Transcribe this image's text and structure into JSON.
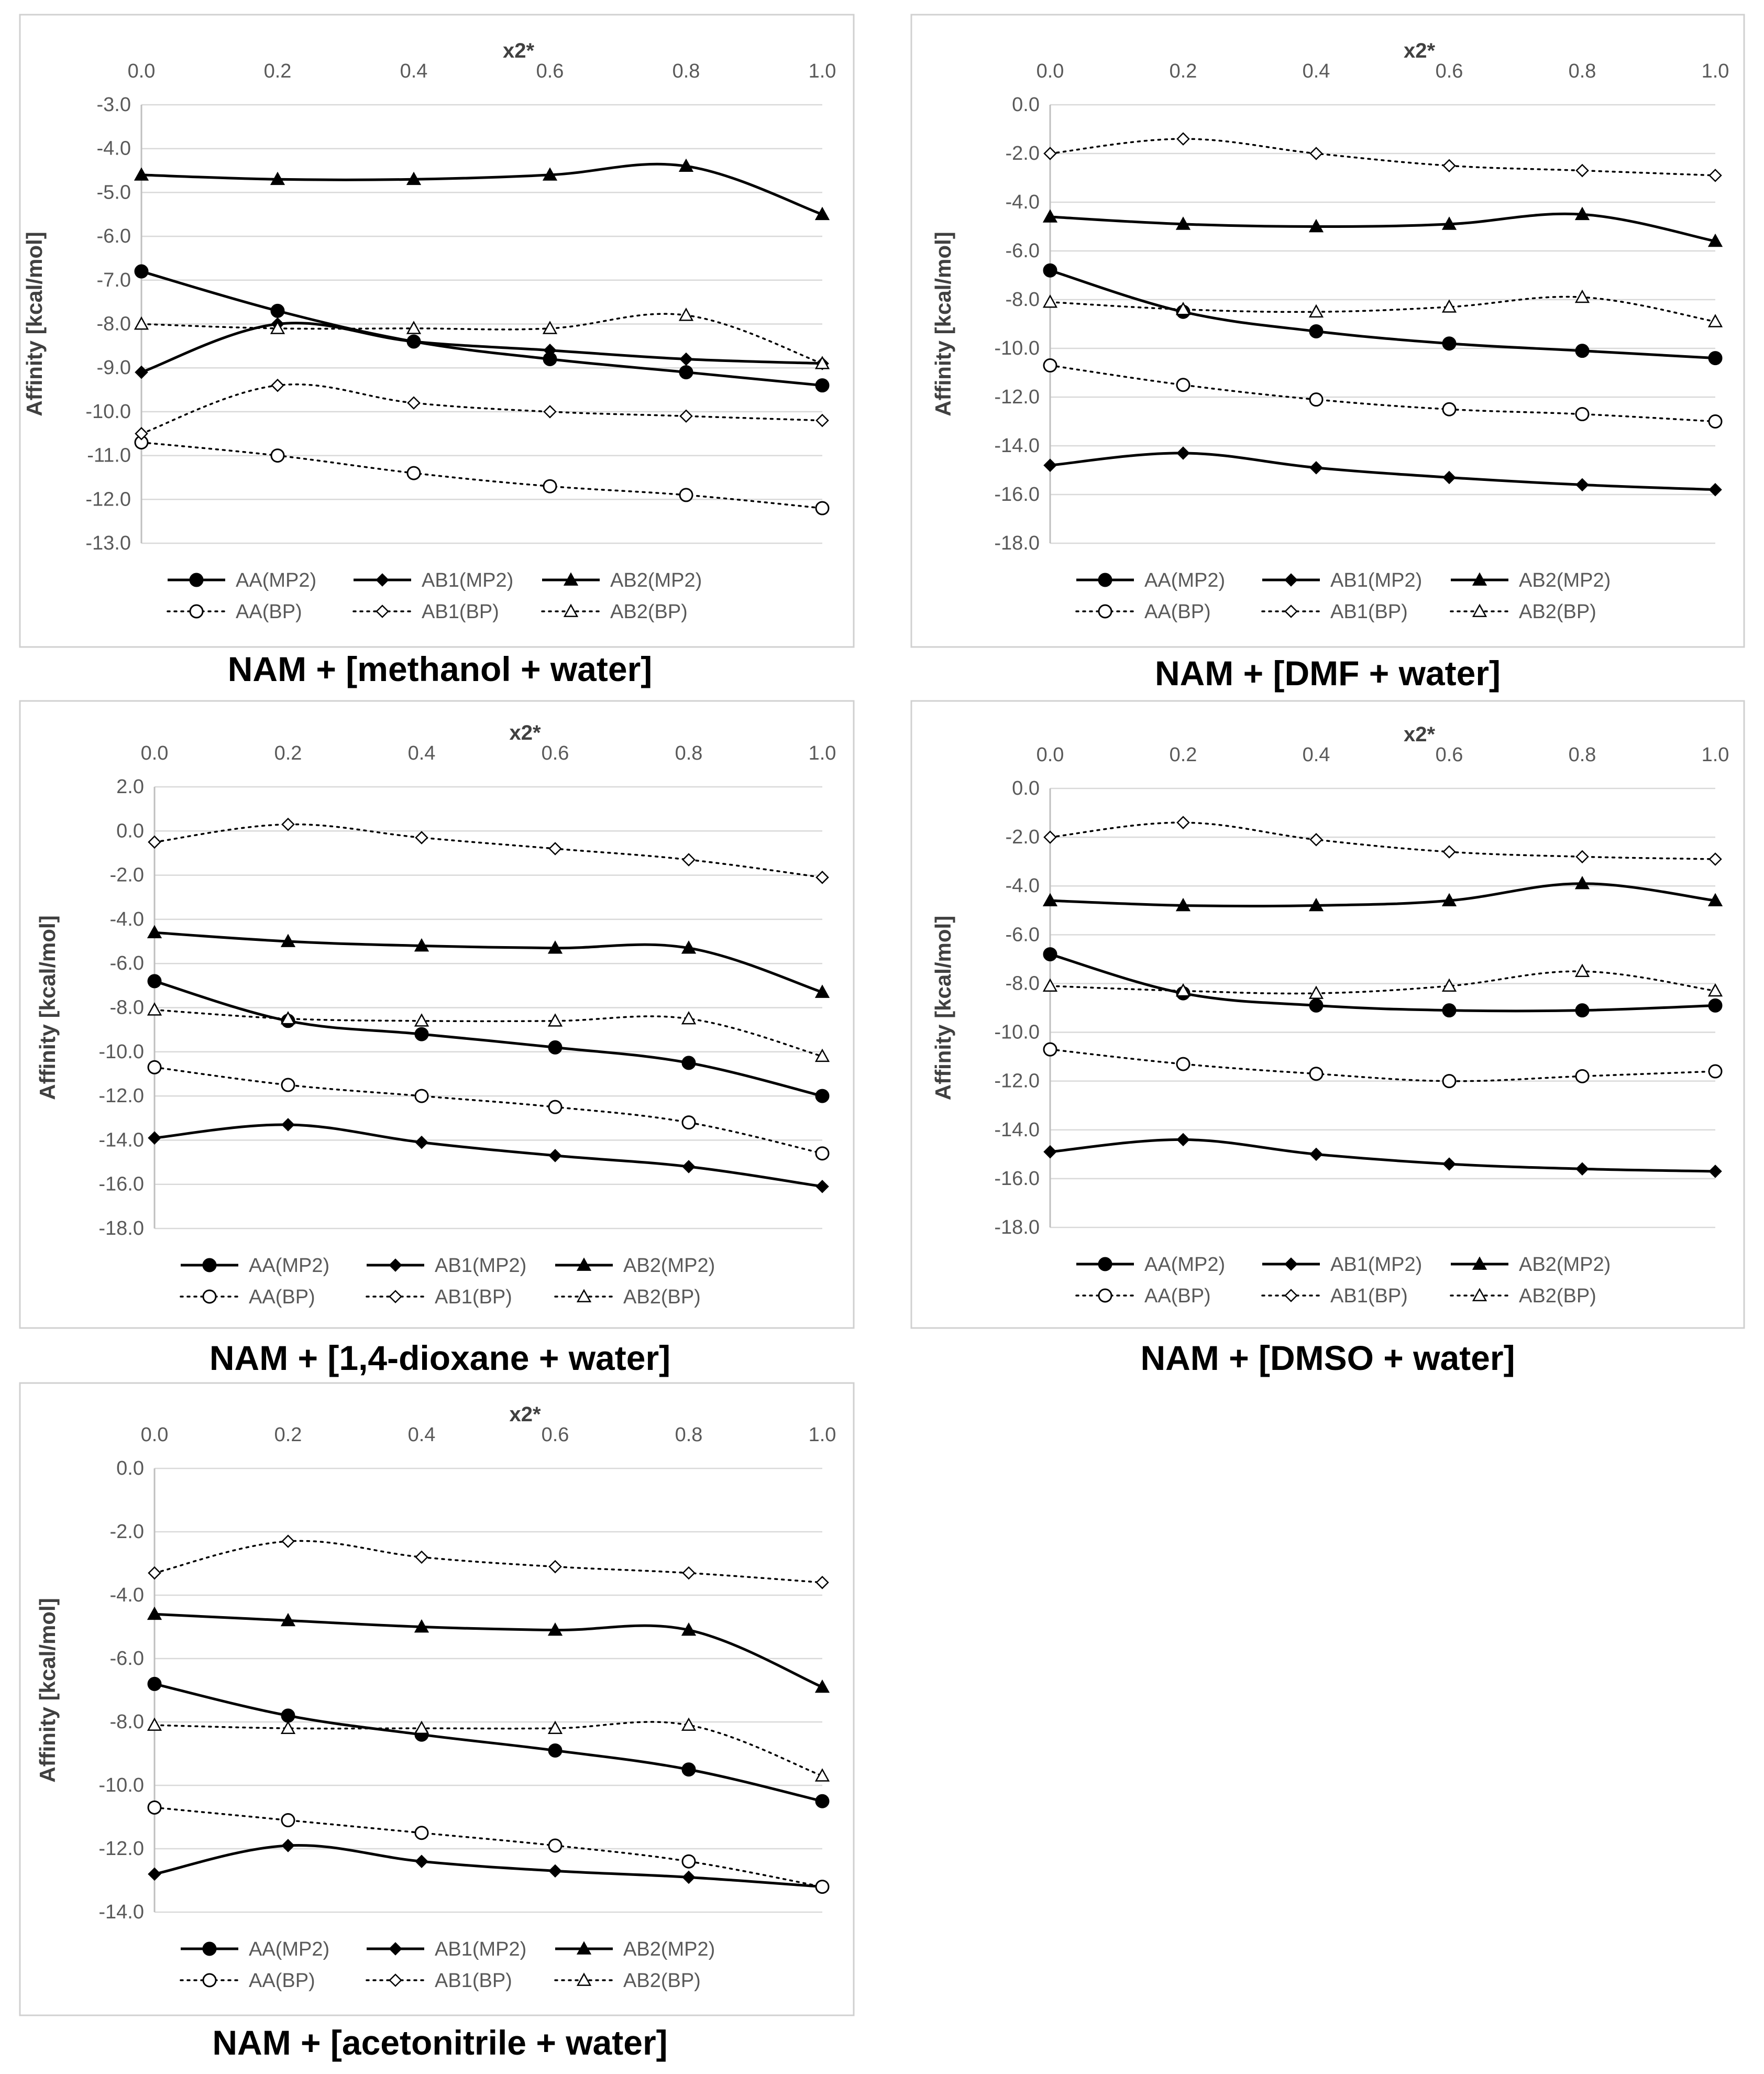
{
  "chart_data": [
    {
      "type": "line",
      "title": "NAM + [methanol + water]",
      "xlabel": "x2*",
      "ylabel": "Affinity [kcal/mol]",
      "x": [
        0.0,
        0.2,
        0.4,
        0.6,
        0.8,
        1.0
      ],
      "xticks": [
        "0.0",
        "0.2",
        "0.4",
        "0.6",
        "0.8",
        "1.0"
      ],
      "ylim": [
        -13.0,
        -3.0
      ],
      "yticks": [
        "-3.0",
        "-4.0",
        "-5.0",
        "-6.0",
        "-7.0",
        "-8.0",
        "-9.0",
        "-10.0",
        "-11.0",
        "-12.0",
        "-13.0"
      ],
      "legend_position": "bottom",
      "series": [
        {
          "name": "AA(MP2)",
          "values": [
            -6.8,
            -7.7,
            -8.4,
            -8.8,
            -9.1,
            -9.4
          ]
        },
        {
          "name": "AB1(MP2)",
          "values": [
            -9.1,
            -8.0,
            -8.4,
            -8.6,
            -8.8,
            -8.9
          ]
        },
        {
          "name": "AB2(MP2)",
          "values": [
            -4.6,
            -4.7,
            -4.7,
            -4.6,
            -4.4,
            -5.5
          ]
        },
        {
          "name": "AA(BP)",
          "values": [
            -10.7,
            -11.0,
            -11.4,
            -11.7,
            -11.9,
            -12.2
          ]
        },
        {
          "name": "AB1(BP)",
          "values": [
            -10.5,
            -9.4,
            -9.8,
            -10.0,
            -10.1,
            -10.2
          ]
        },
        {
          "name": "AB2(BP)",
          "values": [
            -8.0,
            -8.1,
            -8.1,
            -8.1,
            -7.8,
            -8.9
          ]
        }
      ]
    },
    {
      "type": "line",
      "title": "NAM + [DMF + water]",
      "xlabel": "x2*",
      "ylabel": "Affinity [kcal/mol]",
      "x": [
        0.0,
        0.2,
        0.4,
        0.6,
        0.8,
        1.0
      ],
      "xticks": [
        "0.0",
        "0.2",
        "0.4",
        "0.6",
        "0.8",
        "1.0"
      ],
      "ylim": [
        -18.0,
        0.0
      ],
      "yticks": [
        "0.0",
        "-2.0",
        "-4.0",
        "-6.0",
        "-8.0",
        "-10.0",
        "-12.0",
        "-14.0",
        "-16.0",
        "-18.0"
      ],
      "legend_position": "bottom",
      "series": [
        {
          "name": "AA(MP2)",
          "values": [
            -6.8,
            -8.5,
            -9.3,
            -9.8,
            -10.1,
            -10.4
          ]
        },
        {
          "name": "AB1(MP2)",
          "values": [
            -14.8,
            -14.3,
            -14.9,
            -15.3,
            -15.6,
            -15.8
          ]
        },
        {
          "name": "AB2(MP2)",
          "values": [
            -4.6,
            -4.9,
            -5.0,
            -4.9,
            -4.5,
            -5.6
          ]
        },
        {
          "name": "AA(BP)",
          "values": [
            -10.7,
            -11.5,
            -12.1,
            -12.5,
            -12.7,
            -13.0
          ]
        },
        {
          "name": "AB1(BP)",
          "values": [
            -2.0,
            -1.4,
            -2.0,
            -2.5,
            -2.7,
            -2.9
          ]
        },
        {
          "name": "AB2(BP)",
          "values": [
            -8.1,
            -8.4,
            -8.5,
            -8.3,
            -7.9,
            -8.9
          ]
        }
      ]
    },
    {
      "type": "line",
      "title": "NAM + [1,4-dioxane + water]",
      "xlabel": "x2*",
      "ylabel": "Affinity [kcal/mol]",
      "x": [
        0.0,
        0.2,
        0.4,
        0.6,
        0.8,
        1.0
      ],
      "xticks": [
        "0.0",
        "0.2",
        "0.4",
        "0.6",
        "0.8",
        "1.0"
      ],
      "ylim": [
        -18.0,
        2.0
      ],
      "yticks": [
        "2.0",
        "0.0",
        "-2.0",
        "-4.0",
        "-6.0",
        "-8.0",
        "-10.0",
        "-12.0",
        "-14.0",
        "-16.0",
        "-18.0"
      ],
      "legend_position": "bottom",
      "series": [
        {
          "name": "AA(MP2)",
          "values": [
            -6.8,
            -8.6,
            -9.2,
            -9.8,
            -10.5,
            -12.0
          ]
        },
        {
          "name": "AB1(MP2)",
          "values": [
            -13.9,
            -13.3,
            -14.1,
            -14.7,
            -15.2,
            -16.1
          ]
        },
        {
          "name": "AB2(MP2)",
          "values": [
            -4.6,
            -5.0,
            -5.2,
            -5.3,
            -5.3,
            -7.3
          ]
        },
        {
          "name": "AA(BP)",
          "values": [
            -10.7,
            -11.5,
            -12.0,
            -12.5,
            -13.2,
            -14.6
          ]
        },
        {
          "name": "AB1(BP)",
          "values": [
            -0.5,
            0.3,
            -0.3,
            -0.8,
            -1.3,
            -2.1
          ]
        },
        {
          "name": "AB2(BP)",
          "values": [
            -8.1,
            -8.5,
            -8.6,
            -8.6,
            -8.5,
            -10.2
          ]
        }
      ]
    },
    {
      "type": "line",
      "title": "NAM + [DMSO + water]",
      "xlabel": "x2*",
      "ylabel": "Affinity [kcal/mol]",
      "x": [
        0.0,
        0.2,
        0.4,
        0.6,
        0.8,
        1.0
      ],
      "xticks": [
        "0.0",
        "0.2",
        "0.4",
        "0.6",
        "0.8",
        "1.0"
      ],
      "ylim": [
        -18.0,
        0.0
      ],
      "yticks": [
        "0.0",
        "-2.0",
        "-4.0",
        "-6.0",
        "-8.0",
        "-10.0",
        "-12.0",
        "-14.0",
        "-16.0",
        "-18.0"
      ],
      "legend_position": "bottom",
      "series": [
        {
          "name": "AA(MP2)",
          "values": [
            -6.8,
            -8.4,
            -8.9,
            -9.1,
            -9.1,
            -8.9
          ]
        },
        {
          "name": "AB1(MP2)",
          "values": [
            -14.9,
            -14.4,
            -15.0,
            -15.4,
            -15.6,
            -15.7
          ]
        },
        {
          "name": "AB2(MP2)",
          "values": [
            -4.6,
            -4.8,
            -4.8,
            -4.6,
            -3.9,
            -4.6
          ]
        },
        {
          "name": "AA(BP)",
          "values": [
            -10.7,
            -11.3,
            -11.7,
            -12.0,
            -11.8,
            -11.6
          ]
        },
        {
          "name": "AB1(BP)",
          "values": [
            -2.0,
            -1.4,
            -2.1,
            -2.6,
            -2.8,
            -2.9
          ]
        },
        {
          "name": "AB2(BP)",
          "values": [
            -8.1,
            -8.3,
            -8.4,
            -8.1,
            -7.5,
            -8.3
          ]
        }
      ]
    },
    {
      "type": "line",
      "title": "NAM + [acetonitrile + water]",
      "xlabel": "x2*",
      "ylabel": "Affinity [kcal/mol]",
      "x": [
        0.0,
        0.2,
        0.4,
        0.6,
        0.8,
        1.0
      ],
      "xticks": [
        "0.0",
        "0.2",
        "0.4",
        "0.6",
        "0.8",
        "1.0"
      ],
      "ylim": [
        -14.0,
        0.0
      ],
      "yticks": [
        "0.0",
        "-2.0",
        "-4.0",
        "-6.0",
        "-8.0",
        "-10.0",
        "-12.0",
        "-14.0"
      ],
      "legend_position": "bottom",
      "series": [
        {
          "name": "AA(MP2)",
          "values": [
            -6.8,
            -7.8,
            -8.4,
            -8.9,
            -9.5,
            -10.5
          ]
        },
        {
          "name": "AB1(MP2)",
          "values": [
            -12.8,
            -11.9,
            -12.4,
            -12.7,
            -12.9,
            -13.2
          ]
        },
        {
          "name": "AB2(MP2)",
          "values": [
            -4.6,
            -4.8,
            -5.0,
            -5.1,
            -5.1,
            -6.9
          ]
        },
        {
          "name": "AA(BP)",
          "values": [
            -10.7,
            -11.1,
            -11.5,
            -11.9,
            -12.4,
            -13.2
          ]
        },
        {
          "name": "AB1(BP)",
          "values": [
            -3.3,
            -2.3,
            -2.8,
            -3.1,
            -3.3,
            -3.6
          ]
        },
        {
          "name": "AB2(BP)",
          "values": [
            -8.1,
            -8.2,
            -8.2,
            -8.2,
            -8.1,
            -9.7
          ]
        }
      ]
    }
  ]
}
